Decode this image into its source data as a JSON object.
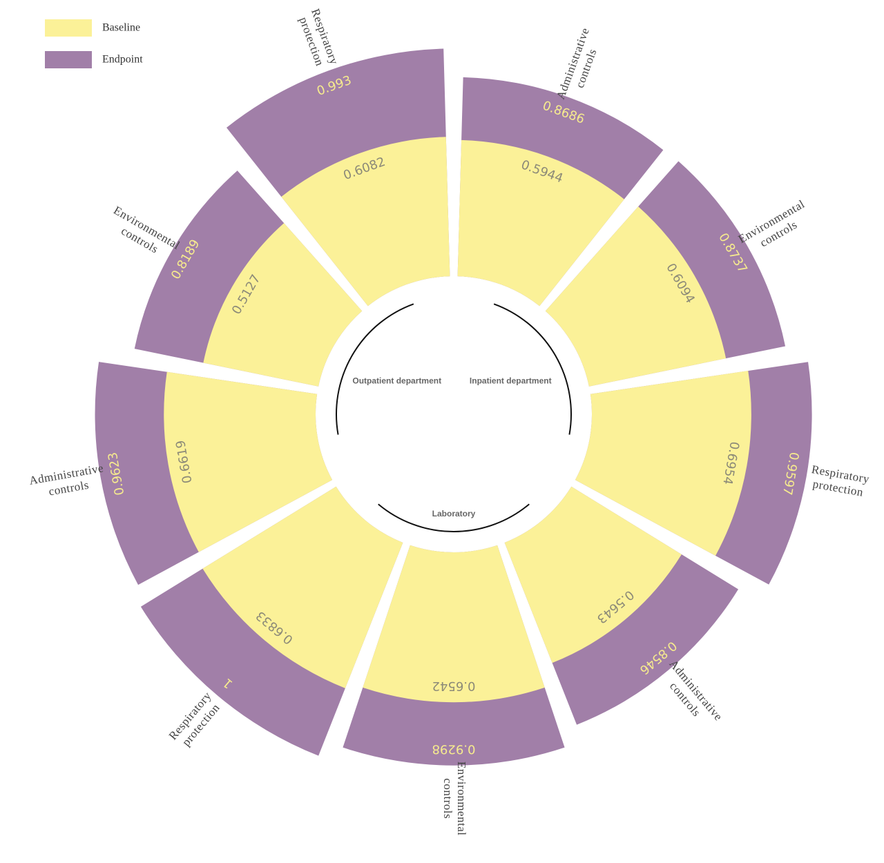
{
  "chart_data": {
    "type": "radial_bar",
    "categories": [
      [
        "Administrative",
        "controls"
      ],
      [
        "Environmental",
        "controls"
      ],
      [
        "Respiratory",
        "protection"
      ],
      [
        "Administrative",
        "controls"
      ],
      [
        "Environmental",
        "controls"
      ],
      [
        "Respiratory",
        "protection"
      ],
      [
        "Administrative",
        "controls"
      ],
      [
        "Environmental",
        "controls"
      ],
      [
        "Respiratory",
        "protection"
      ]
    ],
    "groups": [
      "Inpatient department",
      "Laboratory",
      "Outpatient department"
    ],
    "series": [
      {
        "name": "Baseline",
        "color": "#fbf198",
        "label_color": "#8c8a78",
        "values": [
          0.5944,
          0.6094,
          0.6954,
          0.5643,
          0.6542,
          0.6833,
          0.6619,
          0.5127,
          0.6082
        ]
      },
      {
        "name": "Endpoint",
        "color": "#a17fa8",
        "label_color": "#f6eb8e",
        "values": [
          0.8686,
          0.8737,
          0.9597,
          0.8546,
          0.9298,
          1,
          0.9623,
          0.8189,
          0.993
        ]
      }
    ]
  }
}
